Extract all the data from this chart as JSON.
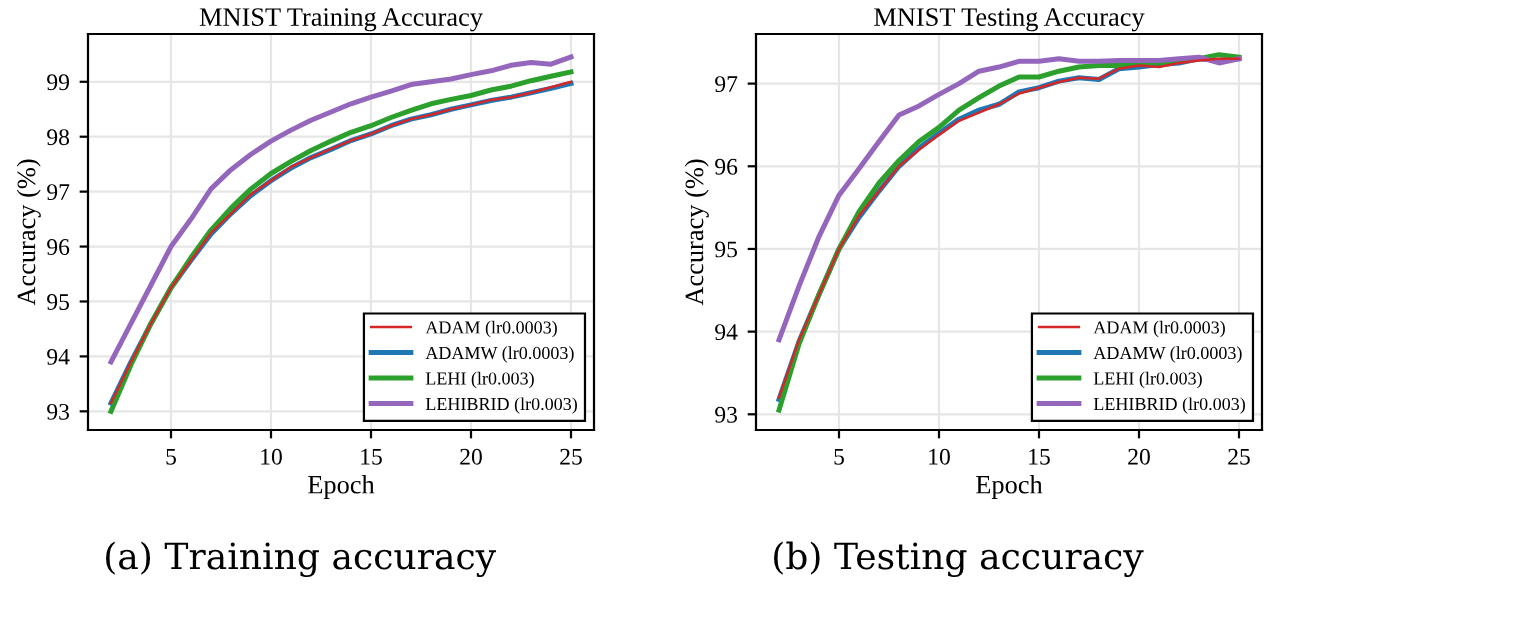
{
  "chart_data": [
    {
      "type": "line",
      "title": "MNIST Training Accuracy",
      "xlabel": "Epoch",
      "ylabel": "Accuracy (%)",
      "annotations": [
        "(a) Training accuracy"
      ],
      "x": [
        2,
        3,
        4,
        5,
        6,
        7,
        8,
        9,
        10,
        11,
        12,
        13,
        14,
        15,
        16,
        17,
        18,
        19,
        20,
        21,
        22,
        23,
        24,
        25
      ],
      "series": [
        {
          "name": "ADAM (lr0.0003)",
          "color": "#d62728",
          "values": [
            93.15,
            93.9,
            94.6,
            95.25,
            95.75,
            96.25,
            96.6,
            96.95,
            97.2,
            97.45,
            97.62,
            97.78,
            97.93,
            98.05,
            98.2,
            98.32,
            98.4,
            98.5,
            98.58,
            98.67,
            98.72,
            98.8,
            98.9,
            99.0
          ]
        },
        {
          "name": "ADAMW (lr0.0003)",
          "color": "#1f77b4",
          "values": [
            93.15,
            93.9,
            94.6,
            95.25,
            95.75,
            96.23,
            96.6,
            96.93,
            97.2,
            97.43,
            97.62,
            97.77,
            97.93,
            98.05,
            98.2,
            98.32,
            98.4,
            98.5,
            98.58,
            98.66,
            98.72,
            98.8,
            98.88,
            98.97
          ]
        },
        {
          "name": "LEHI (lr0.003)",
          "color": "#2ca02c",
          "values": [
            93.0,
            93.85,
            94.6,
            95.25,
            95.8,
            96.3,
            96.7,
            97.05,
            97.33,
            97.55,
            97.75,
            97.92,
            98.08,
            98.2,
            98.35,
            98.48,
            98.6,
            98.68,
            98.75,
            98.85,
            98.92,
            99.02,
            99.1,
            99.18
          ]
        },
        {
          "name": "LEHIBRID (lr0.003)",
          "color": "#9467bd",
          "values": [
            93.9,
            94.6,
            95.3,
            96.0,
            96.5,
            97.05,
            97.4,
            97.68,
            97.92,
            98.12,
            98.3,
            98.45,
            98.6,
            98.72,
            98.83,
            98.95,
            99.0,
            99.05,
            99.13,
            99.2,
            99.3,
            99.35,
            99.32,
            99.45
          ]
        }
      ],
      "xlim": [
        0.85,
        26.15
      ],
      "ylim": [
        92.66,
        99.87
      ],
      "xticks": [
        5,
        10,
        15,
        20,
        25
      ],
      "yticks": [
        93,
        94,
        95,
        96,
        97,
        98,
        99
      ],
      "grid": true,
      "legend": "bottom right"
    },
    {
      "type": "line",
      "title": "MNIST Testing Accuracy",
      "xlabel": "Epoch",
      "ylabel": "Accuracy (%)",
      "annotations": [
        "(b) Testing accuracy"
      ],
      "x": [
        2,
        3,
        4,
        5,
        6,
        7,
        8,
        9,
        10,
        11,
        12,
        13,
        14,
        15,
        16,
        17,
        18,
        19,
        20,
        21,
        22,
        23,
        24,
        25
      ],
      "series": [
        {
          "name": "ADAM (lr0.0003)",
          "color": "#d62728",
          "values": [
            93.2,
            93.9,
            94.45,
            95.0,
            95.4,
            95.7,
            96.0,
            96.2,
            96.38,
            96.55,
            96.65,
            96.75,
            96.88,
            96.95,
            97.02,
            97.07,
            97.06,
            97.18,
            97.22,
            97.2,
            97.25,
            97.28,
            97.3,
            97.3
          ]
        },
        {
          "name": "ADAMW (lr0.0003)",
          "color": "#1f77b4",
          "values": [
            93.18,
            93.88,
            94.45,
            95.0,
            95.38,
            95.7,
            96.0,
            96.22,
            96.4,
            96.57,
            96.68,
            96.75,
            96.9,
            96.95,
            97.03,
            97.07,
            97.05,
            97.18,
            97.2,
            97.23,
            97.25,
            97.3,
            97.28,
            97.3
          ]
        },
        {
          "name": "LEHI (lr0.003)",
          "color": "#2ca02c",
          "values": [
            93.05,
            93.85,
            94.45,
            95.0,
            95.45,
            95.8,
            96.07,
            96.3,
            96.47,
            96.68,
            96.83,
            96.97,
            97.08,
            97.08,
            97.15,
            97.2,
            97.22,
            97.22,
            97.25,
            97.25,
            97.28,
            97.3,
            97.35,
            97.32
          ]
        },
        {
          "name": "LEHIBRID (lr0.003)",
          "color": "#9467bd",
          "values": [
            93.9,
            94.55,
            95.15,
            95.65,
            95.97,
            96.3,
            96.62,
            96.73,
            96.87,
            97.0,
            97.15,
            97.2,
            97.27,
            97.27,
            97.3,
            97.27,
            97.27,
            97.28,
            97.28,
            97.28,
            97.3,
            97.32,
            97.25,
            97.3
          ]
        }
      ],
      "xlim": [
        0.85,
        26.15
      ],
      "ylim": [
        92.81,
        97.6
      ],
      "xticks": [
        5,
        10,
        15,
        20,
        25
      ],
      "yticks": [
        93,
        94,
        95,
        96,
        97
      ],
      "grid": true,
      "legend": "bottom right"
    }
  ]
}
